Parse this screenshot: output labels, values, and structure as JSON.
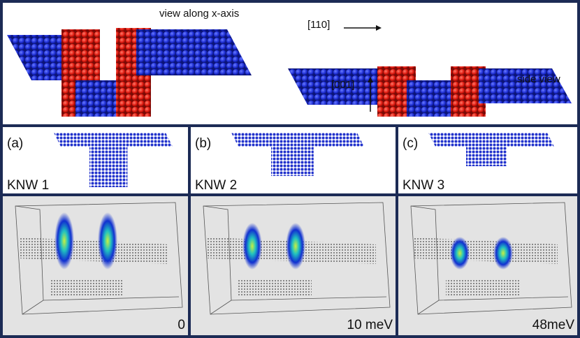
{
  "top": {
    "view_label": "view along x-axis",
    "direction_110": "[110]",
    "direction_001": "[001]",
    "side_label": "side view"
  },
  "panels": [
    {
      "tag": "(a)",
      "name": "KNW 1",
      "energy": "0"
    },
    {
      "tag": "(b)",
      "name": "KNW 2",
      "energy": "10 meV"
    },
    {
      "tag": "(c)",
      "name": "KNW 3",
      "energy": "48meV"
    }
  ]
}
